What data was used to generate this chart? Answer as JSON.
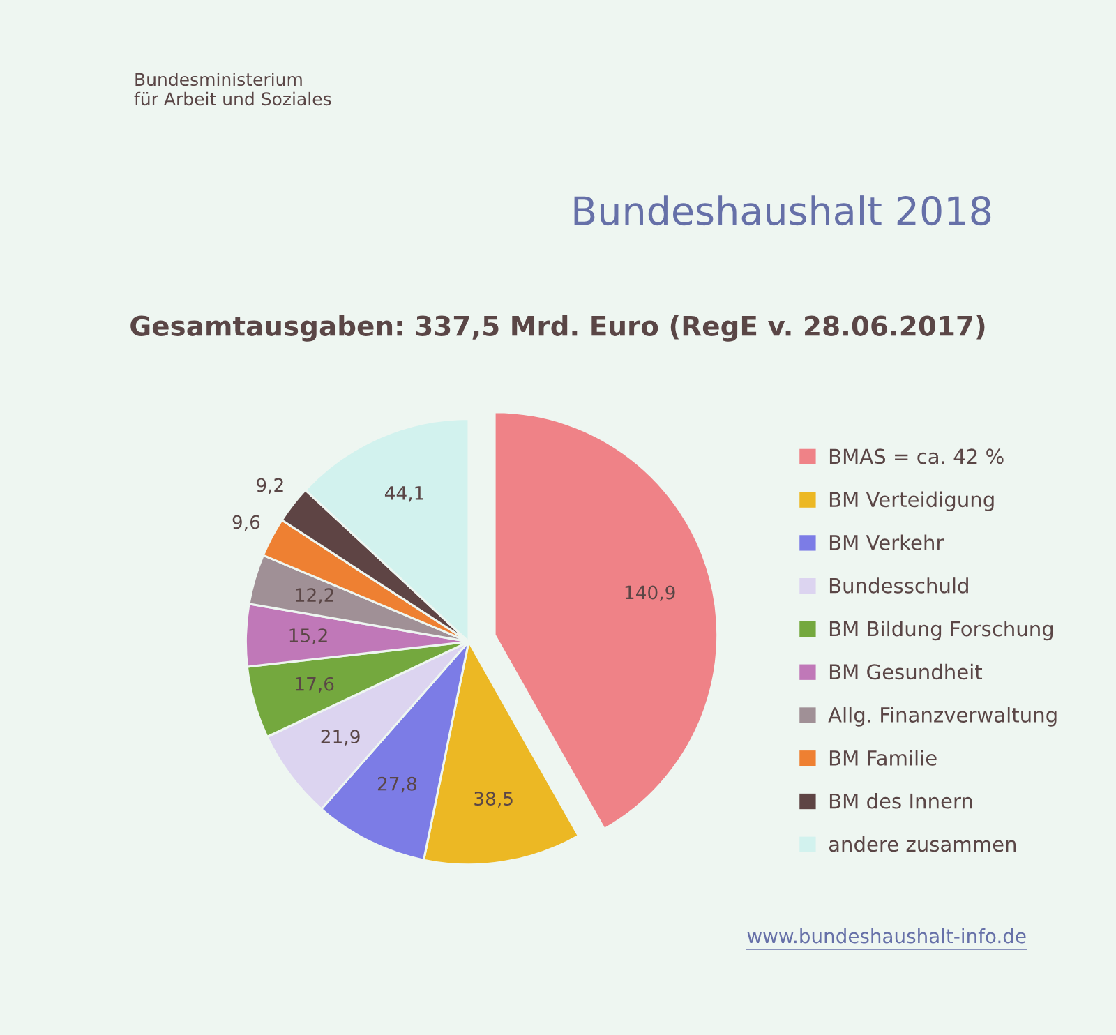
{
  "chart_data": {
    "type": "pie",
    "title": "Bundeshaushalt 2018",
    "subtitle": "Gesamtausgaben: 337,5 Mrd. Euro (RegE v. 28.06.2017)",
    "categories": [
      "BMAS = ca. 42 %",
      "BM Verteidigung",
      "BM Verkehr",
      "Bundesschuld",
      "BM Bildung Forschung",
      "BM Gesundheit",
      "Allg. Finanzverwaltung",
      "BM Familie",
      "BM des Innern",
      "andere zusammen"
    ],
    "values": [
      140.9,
      38.5,
      27.8,
      21.9,
      17.6,
      15.2,
      12.2,
      9.6,
      9.2,
      44.1
    ],
    "value_labels": [
      "140,9",
      "38,5",
      "27,8",
      "21,9",
      "17,6",
      "15,2",
      "12,2",
      "9,6",
      "9,2",
      "44,1"
    ],
    "colors": [
      "#ef8287",
      "#ecb824",
      "#7c7ce6",
      "#dcd4f0",
      "#74a83e",
      "#c078b8",
      "#a09096",
      "#ee8032",
      "#5e4444",
      "#d2f2ee"
    ],
    "legend": "right",
    "annotations": [
      "Bundesministerium\nfür Arbeit und Soziales",
      "www.bundeshaushalt-info.de"
    ]
  }
}
